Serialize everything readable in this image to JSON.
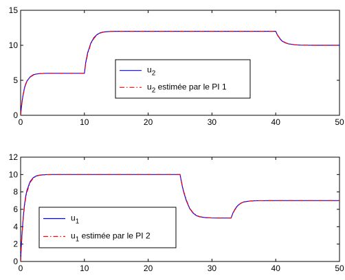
{
  "chart_data": [
    {
      "type": "line",
      "xlim": [
        0,
        50
      ],
      "ylim": [
        0,
        15
      ],
      "xticks": [
        0,
        10,
        20,
        30,
        40,
        50
      ],
      "yticks": [
        0,
        5,
        10,
        15
      ],
      "grid": false,
      "legend_position": "center",
      "series": [
        {
          "name": "u",
          "subscript": "2",
          "color": "#0000ff",
          "dash": "solid",
          "x": [
            0,
            0.1,
            0.2,
            0.4,
            0.6,
            0.8,
            1.0,
            1.5,
            2.0,
            2.5,
            3.0,
            4.0,
            5.0,
            6.0,
            8.0,
            9.99,
            10.0,
            10.2,
            10.5,
            11.0,
            11.5,
            12.0,
            12.5,
            13.0,
            14.0,
            15.0,
            17.0,
            20.0,
            25.0,
            30.0,
            35.0,
            39.99,
            40.0,
            40.3,
            40.7,
            41.0,
            41.5,
            42.0,
            43.0,
            44.0,
            46.0,
            50.0
          ],
          "y": [
            0,
            1.0,
            1.8,
            3.0,
            3.9,
            4.5,
            4.9,
            5.5,
            5.8,
            5.9,
            5.96,
            6.0,
            6.0,
            6.0,
            6.0,
            6.0,
            6.0,
            7.5,
            8.9,
            10.3,
            11.1,
            11.55,
            11.8,
            11.9,
            11.98,
            12.0,
            12.0,
            12.0,
            12.0,
            12.0,
            12.0,
            12.0,
            12.0,
            11.4,
            10.9,
            10.6,
            10.35,
            10.2,
            10.07,
            10.02,
            10.0,
            10.0
          ]
        },
        {
          "name": "u",
          "subscript": "2",
          "name_suffix": " estimée par le PI 1",
          "color": "#ff0000",
          "dash": "dashdot",
          "x": [
            0,
            0.1,
            0.2,
            0.4,
            0.6,
            0.8,
            1.0,
            1.5,
            2.0,
            2.5,
            3.0,
            4.0,
            5.0,
            6.0,
            8.0,
            9.99,
            10.0,
            10.2,
            10.5,
            11.0,
            11.5,
            12.0,
            12.5,
            13.0,
            14.0,
            15.0,
            17.0,
            20.0,
            25.0,
            30.0,
            35.0,
            39.99,
            40.0,
            40.3,
            40.7,
            41.0,
            41.5,
            42.0,
            43.0,
            44.0,
            46.0,
            50.0
          ],
          "y": [
            0,
            0.9,
            1.7,
            2.9,
            3.8,
            4.4,
            4.85,
            5.45,
            5.75,
            5.9,
            5.95,
            6.0,
            6.0,
            6.0,
            6.0,
            6.0,
            6.0,
            7.3,
            8.7,
            10.2,
            11.0,
            11.5,
            11.75,
            11.88,
            11.97,
            12.0,
            12.0,
            12.0,
            12.0,
            12.0,
            12.0,
            12.0,
            12.0,
            11.45,
            10.95,
            10.65,
            10.38,
            10.22,
            10.08,
            10.03,
            10.0,
            10.0
          ]
        }
      ]
    },
    {
      "type": "line",
      "xlim": [
        0,
        50
      ],
      "ylim": [
        0,
        12
      ],
      "xticks": [
        0,
        10,
        20,
        30,
        40,
        50
      ],
      "yticks": [
        0,
        2,
        4,
        6,
        8,
        10,
        12
      ],
      "grid": false,
      "legend_position": "bottom-left",
      "series": [
        {
          "name": "u",
          "subscript": "1",
          "color": "#0000ff",
          "dash": "solid",
          "x": [
            0,
            0.1,
            0.2,
            0.4,
            0.6,
            0.8,
            1.0,
            1.5,
            2.0,
            2.5,
            3.0,
            4.0,
            5.0,
            7.0,
            10.0,
            15.0,
            20.0,
            24.99,
            25.0,
            25.3,
            25.6,
            26.0,
            26.5,
            27.0,
            27.5,
            28.0,
            29.0,
            30.0,
            31.0,
            32.0,
            32.99,
            33.0,
            33.3,
            33.6,
            34.0,
            34.5,
            35.0,
            36.0,
            37.0,
            40.0,
            45.0,
            50.0
          ],
          "y": [
            0,
            1.7,
            3.0,
            5.0,
            6.5,
            7.5,
            8.2,
            9.2,
            9.65,
            9.85,
            9.94,
            9.99,
            10.0,
            10.0,
            10.0,
            10.0,
            10.0,
            10.0,
            10.0,
            8.8,
            7.9,
            6.95,
            6.1,
            5.6,
            5.3,
            5.15,
            5.04,
            5.01,
            5.0,
            5.0,
            5.0,
            5.0,
            5.6,
            6.0,
            6.4,
            6.7,
            6.85,
            6.96,
            6.99,
            7.0,
            7.0,
            7.0
          ]
        },
        {
          "name": "u",
          "subscript": "1",
          "name_suffix": " estimée par le PI 2",
          "color": "#ff0000",
          "dash": "dashdot",
          "x": [
            0,
            0.1,
            0.2,
            0.4,
            0.6,
            0.8,
            1.0,
            1.5,
            2.0,
            2.5,
            3.0,
            4.0,
            5.0,
            7.0,
            10.0,
            15.0,
            20.0,
            24.99,
            25.0,
            25.3,
            25.6,
            26.0,
            26.5,
            27.0,
            27.5,
            28.0,
            29.0,
            30.0,
            31.0,
            32.0,
            32.99,
            33.0,
            33.3,
            33.6,
            34.0,
            34.5,
            35.0,
            36.0,
            37.0,
            40.0,
            45.0,
            50.0
          ],
          "y": [
            0,
            1.5,
            2.8,
            4.8,
            6.3,
            7.3,
            8.0,
            9.1,
            9.6,
            9.82,
            9.92,
            9.98,
            10.0,
            10.0,
            10.0,
            10.0,
            10.0,
            10.0,
            10.0,
            8.9,
            8.0,
            7.05,
            6.15,
            5.65,
            5.35,
            5.17,
            5.05,
            5.01,
            5.0,
            5.0,
            5.0,
            5.0,
            5.55,
            5.95,
            6.35,
            6.68,
            6.84,
            6.95,
            6.99,
            7.0,
            7.0,
            7.0
          ]
        }
      ]
    }
  ]
}
